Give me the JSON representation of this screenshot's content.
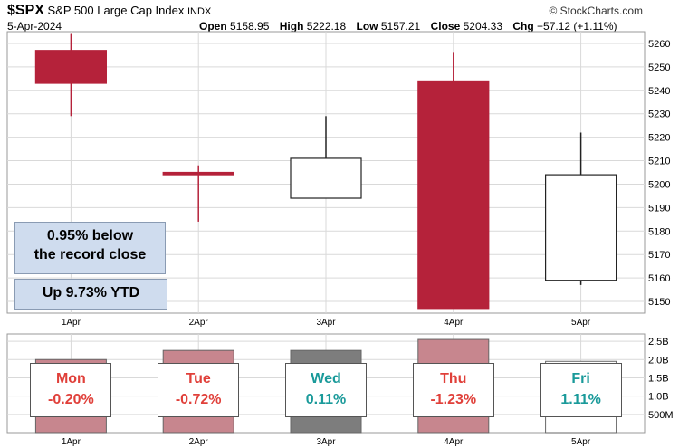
{
  "header": {
    "symbol": "$SPX",
    "name": "S&P 500 Large Cap Index",
    "exchange": "INDX",
    "date": "5-Apr-2024",
    "open_label": "Open",
    "open": "5158.95",
    "high_label": "High",
    "high": "5222.18",
    "low_label": "Low",
    "low": "5157.21",
    "close_label": "Close",
    "close": "5204.33",
    "chg_label": "Chg",
    "chg": "+57.12 (+1.11%)",
    "brand": "© StockCharts.com"
  },
  "annotations": {
    "record_line1": "0.95% below",
    "record_line2": "the record close",
    "ytd": "Up 9.73% YTD"
  },
  "day_boxes": [
    {
      "day": "Mon",
      "chg": "-0.20%",
      "tone": "neg"
    },
    {
      "day": "Tue",
      "chg": "-0.72%",
      "tone": "neg"
    },
    {
      "day": "Wed",
      "chg": "0.11%",
      "tone": "pos"
    },
    {
      "day": "Thu",
      "chg": "-1.23%",
      "tone": "neg"
    },
    {
      "day": "Fri",
      "chg": "1.11%",
      "tone": "pos"
    }
  ],
  "colors": {
    "down": "#b5223a",
    "up_fill": "#ffffff",
    "stroke": "#222222",
    "wick_down": "#b5223a",
    "grid": "#d9d9d9"
  },
  "chart_data": [
    {
      "type": "candlestick",
      "categories": [
        "1Apr",
        "2Apr",
        "3Apr",
        "4Apr",
        "5Apr"
      ],
      "open": [
        5257,
        5204,
        5194,
        5244,
        5159
      ],
      "high": [
        5264,
        5208,
        5229,
        5256,
        5222
      ],
      "low": [
        5229,
        5184,
        5194,
        5147,
        5157
      ],
      "close": [
        5243,
        5205,
        5211,
        5147,
        5204
      ],
      "direction": [
        "down",
        "down",
        "up",
        "down",
        "up"
      ],
      "yticks": [
        5150,
        5160,
        5170,
        5180,
        5190,
        5200,
        5210,
        5220,
        5230,
        5240,
        5250,
        5260
      ],
      "ylim": [
        5145,
        5265
      ],
      "grid": true
    },
    {
      "type": "bar",
      "categories": [
        "1Apr",
        "2Apr",
        "3Apr",
        "4Apr",
        "5Apr"
      ],
      "values": [
        2.0,
        2.25,
        2.25,
        2.55,
        1.95
      ],
      "bar_colors": [
        "#c7868e",
        "#c7868e",
        "#7d7d7d",
        "#c7868e",
        "#ffffff"
      ],
      "yticks_labels": [
        "2.5B",
        "2.0B",
        "1.5B",
        "1.0B",
        "500M"
      ],
      "yticks": [
        2.5,
        2.0,
        1.5,
        1.0,
        0.5
      ],
      "ylim": [
        0,
        2.7
      ],
      "grid": true
    }
  ]
}
